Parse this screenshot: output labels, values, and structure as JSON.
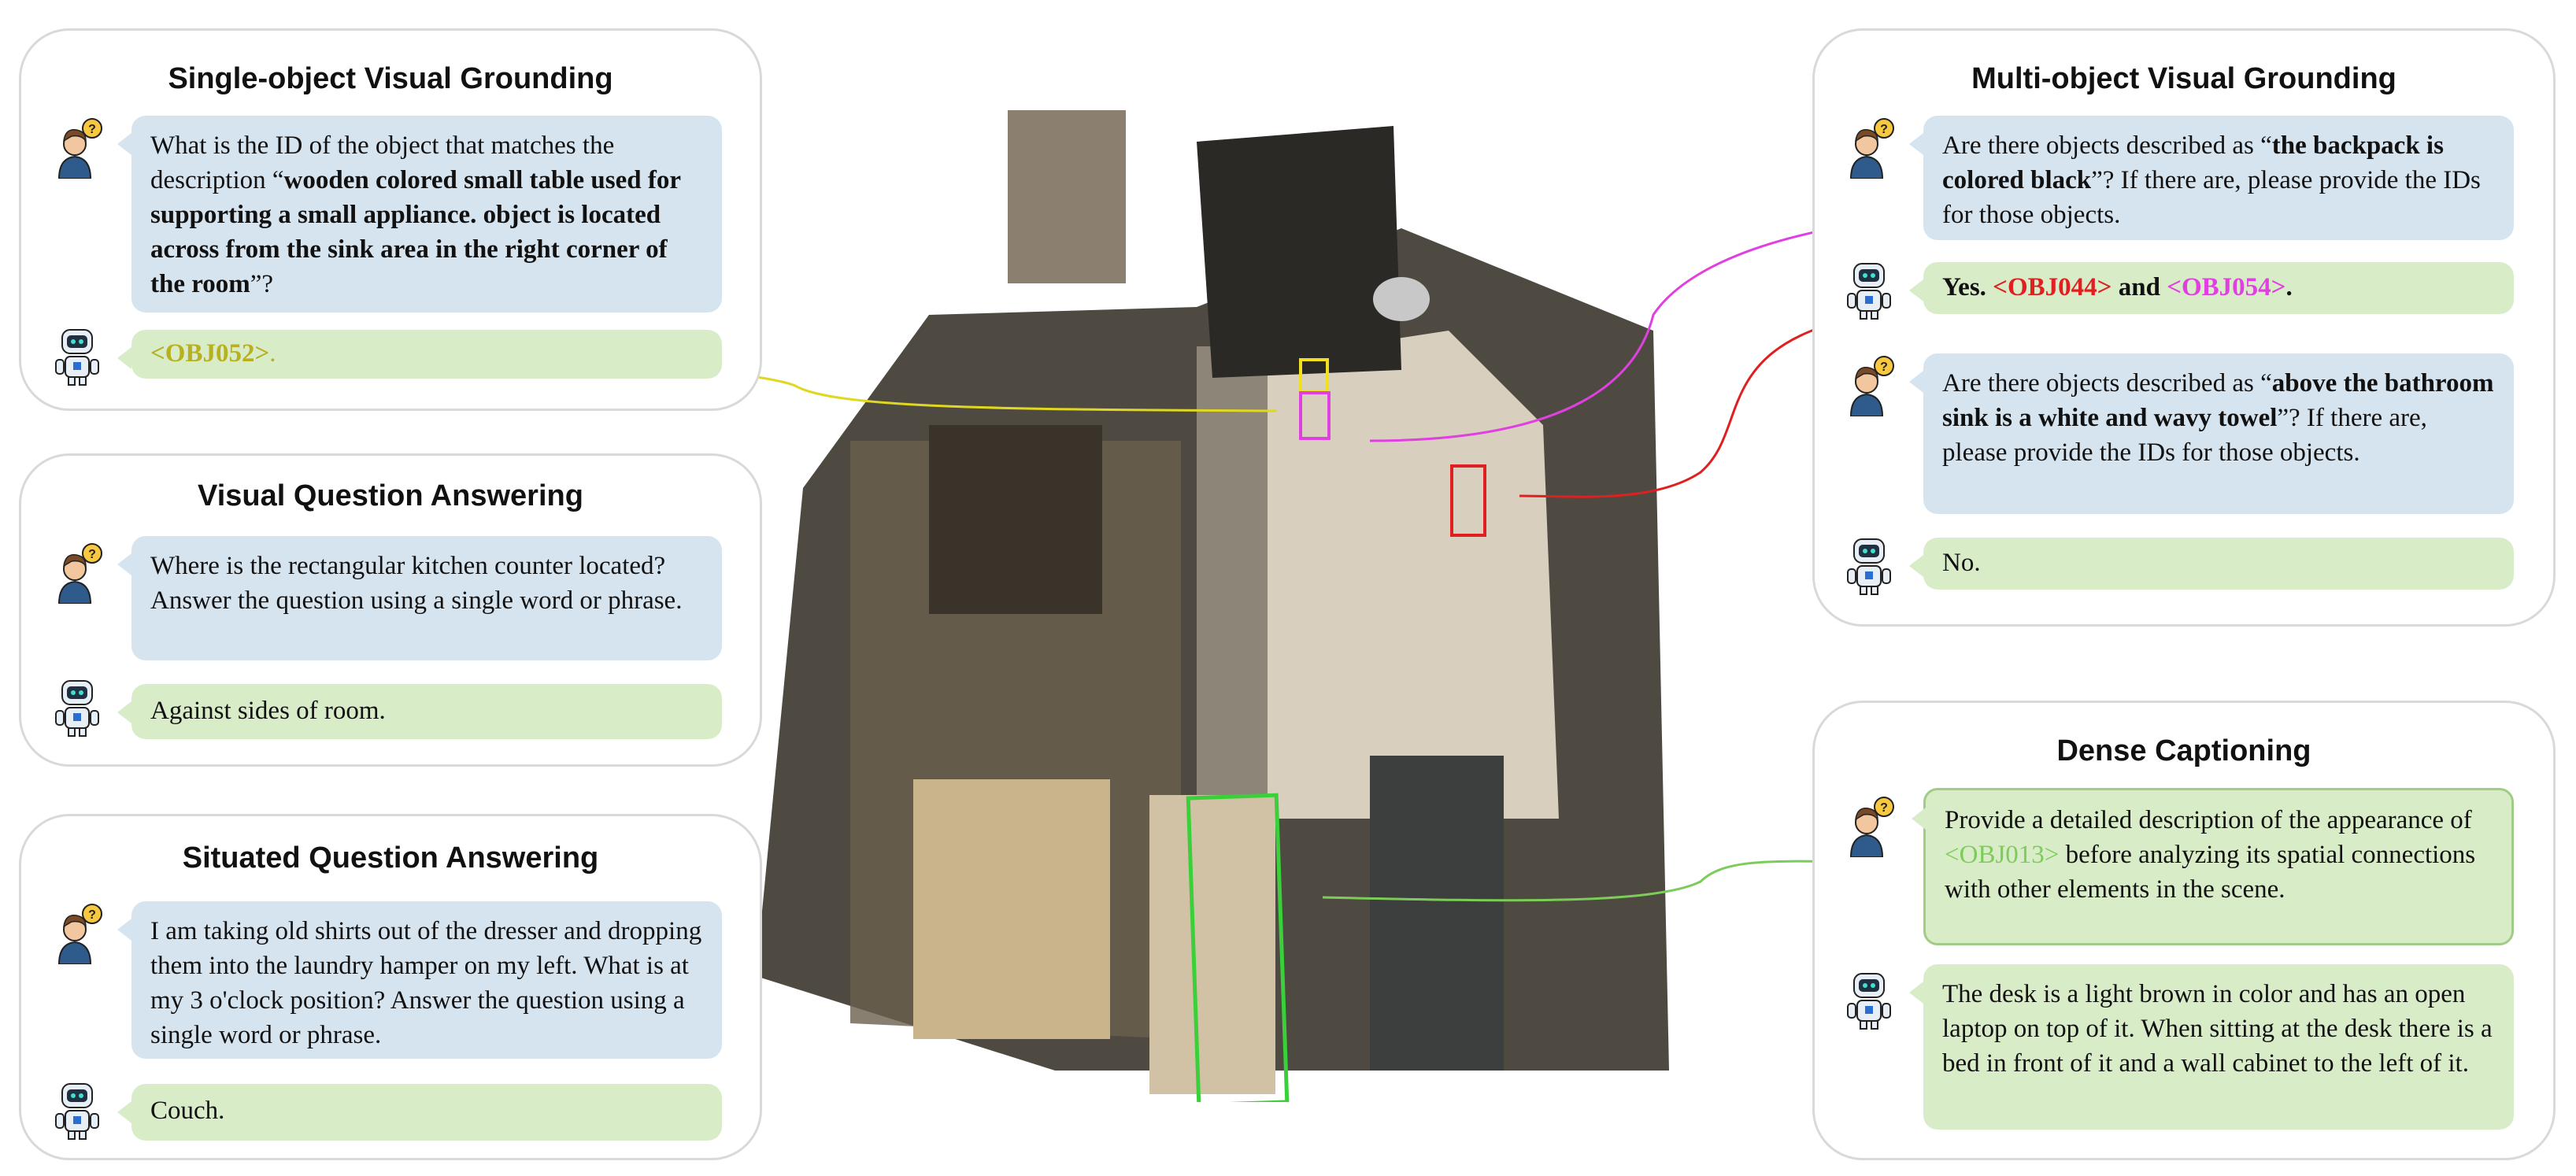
{
  "panels": {
    "sovg": {
      "title": "Single-object Visual Grounding",
      "question_pre": "What is the ID of the object that matches the description “",
      "question_bold": "wooden colored small table used for supporting a small appliance. object is located across from the sink area in the right corner of the room",
      "question_post": "”?",
      "answer_obj": "<OBJ052>",
      "answer_post": "."
    },
    "vqa": {
      "title": "Visual Question Answering",
      "question": "Where is the rectangular kitchen counter located? Answer the question using a single word or phrase.",
      "answer": "Against sides of room."
    },
    "sqa": {
      "title": "Situated Question Answering",
      "question": "I am taking old shirts out of the dresser and dropping them into the laundry hamper on my left. What is at my 3 o'clock position? Answer the question using a single word or phrase.",
      "answer": "Couch."
    },
    "movg": {
      "title": "Multi-object Visual Grounding",
      "q1_pre": "Are there objects described as “",
      "q1_bold": "the backpack is colored black",
      "q1_post": "”? If there are, please provide the IDs for those objects.",
      "a1_pre": "Yes. ",
      "a1_obj1": "<OBJ044>",
      "a1_mid": " and ",
      "a1_obj2": "<OBJ054>",
      "a1_post": ".",
      "q2_pre": "Are there objects described as “",
      "q2_bold": "above the bathroom sink is a white and wavy towel",
      "q2_post": "”? If there are, please provide the IDs for those objects.",
      "a2": "No."
    },
    "dc": {
      "title": "Dense Captioning",
      "question_pre": "Provide a detailed description of the appearance of ",
      "question_obj": "<OBJ013>",
      "question_post": " before analyzing its spatial connections with other elements in the scene.",
      "answer": "The desk is a light brown in color and has an open laptop on top of it. When sitting at the desk there is a bed in front of it and a wall cabinet to the left of it."
    }
  },
  "colors": {
    "obj052": "#b8b020",
    "obj044": "#e02020",
    "obj054": "#e040e0",
    "obj013": "#7ccc5a",
    "question_bg": "#d6e4f0",
    "answer_bg": "#d9ecc8"
  },
  "icons": [
    "person-question-icon",
    "robot-icon"
  ]
}
